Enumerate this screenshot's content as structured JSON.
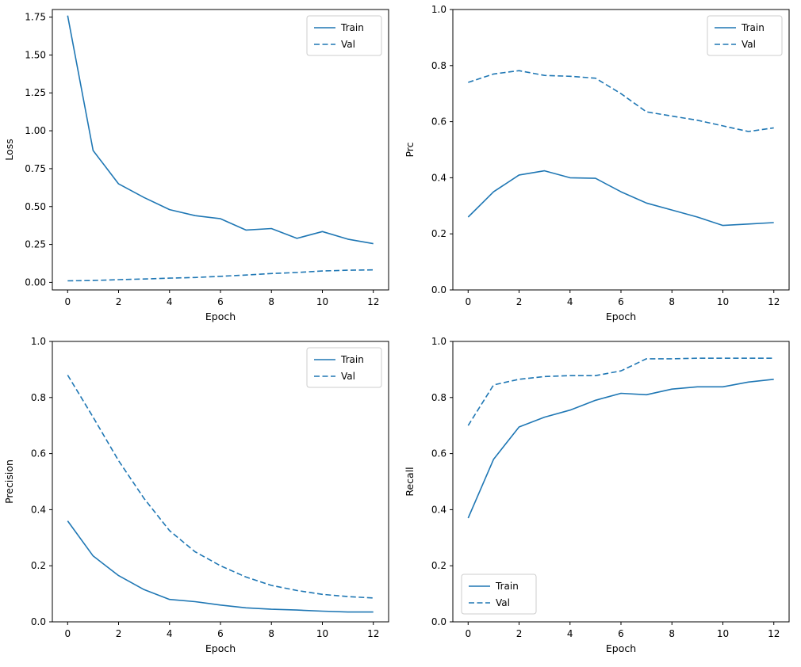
{
  "figure": {
    "background": "#ffffff",
    "line_color": "#1f77b4",
    "frame_color": "#000000",
    "legend_border_color": "#cccccc"
  },
  "chart_data": [
    {
      "type": "line",
      "name": "loss",
      "title": "",
      "xlabel": "Epoch",
      "ylabel": "Loss",
      "x": [
        0,
        1,
        2,
        3,
        4,
        5,
        6,
        7,
        8,
        9,
        10,
        11,
        12
      ],
      "xlim": [
        -0.6,
        12.6
      ],
      "ylim": [
        -0.05,
        1.8
      ],
      "xticks": [
        "0",
        "2",
        "4",
        "6",
        "8",
        "10",
        "12"
      ],
      "yticks": [
        "0.00",
        "0.25",
        "0.50",
        "0.75",
        "1.00",
        "1.25",
        "1.50",
        "1.75"
      ],
      "legend": {
        "position": "upper-right"
      },
      "series": [
        {
          "name": "Train",
          "style": "solid",
          "values": [
            1.76,
            0.87,
            0.65,
            0.56,
            0.48,
            0.44,
            0.42,
            0.345,
            0.355,
            0.29,
            0.335,
            0.285,
            0.255
          ]
        },
        {
          "name": "Val",
          "style": "dashed",
          "values": [
            0.01,
            0.012,
            0.018,
            0.022,
            0.028,
            0.032,
            0.04,
            0.048,
            0.058,
            0.065,
            0.075,
            0.08,
            0.082
          ]
        }
      ]
    },
    {
      "type": "line",
      "name": "prc",
      "title": "",
      "xlabel": "Epoch",
      "ylabel": "Prc",
      "x": [
        0,
        1,
        2,
        3,
        4,
        5,
        6,
        7,
        8,
        9,
        10,
        11,
        12
      ],
      "xlim": [
        -0.6,
        12.6
      ],
      "ylim": [
        0,
        1
      ],
      "xticks": [
        "0",
        "2",
        "4",
        "6",
        "8",
        "10",
        "12"
      ],
      "yticks": [
        "0.0",
        "0.2",
        "0.4",
        "0.6",
        "0.8",
        "1.0"
      ],
      "legend": {
        "position": "upper-right"
      },
      "series": [
        {
          "name": "Train",
          "style": "solid",
          "values": [
            0.26,
            0.35,
            0.41,
            0.425,
            0.4,
            0.398,
            0.35,
            0.31,
            0.285,
            0.26,
            0.23,
            0.235,
            0.24
          ]
        },
        {
          "name": "Val",
          "style": "dashed",
          "values": [
            0.74,
            0.77,
            0.782,
            0.765,
            0.762,
            0.755,
            0.7,
            0.635,
            0.62,
            0.605,
            0.585,
            0.565,
            0.578
          ]
        }
      ]
    },
    {
      "type": "line",
      "name": "precision",
      "title": "",
      "xlabel": "Epoch",
      "ylabel": "Precision",
      "x": [
        0,
        1,
        2,
        3,
        4,
        5,
        6,
        7,
        8,
        9,
        10,
        11,
        12
      ],
      "xlim": [
        -0.6,
        12.6
      ],
      "ylim": [
        0,
        1
      ],
      "xticks": [
        "0",
        "2",
        "4",
        "6",
        "8",
        "10",
        "12"
      ],
      "yticks": [
        "0.0",
        "0.2",
        "0.4",
        "0.6",
        "0.8",
        "1.0"
      ],
      "legend": {
        "position": "upper-right"
      },
      "series": [
        {
          "name": "Train",
          "style": "solid",
          "values": [
            0.36,
            0.235,
            0.165,
            0.115,
            0.08,
            0.072,
            0.06,
            0.05,
            0.045,
            0.042,
            0.038,
            0.035,
            0.035
          ]
        },
        {
          "name": "Val",
          "style": "dashed",
          "values": [
            0.88,
            0.73,
            0.575,
            0.44,
            0.325,
            0.25,
            0.2,
            0.16,
            0.13,
            0.112,
            0.098,
            0.09,
            0.085
          ]
        }
      ]
    },
    {
      "type": "line",
      "name": "recall",
      "title": "",
      "xlabel": "Epoch",
      "ylabel": "Recall",
      "x": [
        0,
        1,
        2,
        3,
        4,
        5,
        6,
        7,
        8,
        9,
        10,
        11,
        12
      ],
      "xlim": [
        -0.6,
        12.6
      ],
      "ylim": [
        0,
        1
      ],
      "xticks": [
        "0",
        "2",
        "4",
        "6",
        "8",
        "10",
        "12"
      ],
      "yticks": [
        "0.0",
        "0.2",
        "0.4",
        "0.6",
        "0.8",
        "1.0"
      ],
      "legend": {
        "position": "lower-left"
      },
      "series": [
        {
          "name": "Train",
          "style": "solid",
          "values": [
            0.37,
            0.58,
            0.695,
            0.73,
            0.755,
            0.79,
            0.815,
            0.81,
            0.83,
            0.838,
            0.838,
            0.855,
            0.865
          ]
        },
        {
          "name": "Val",
          "style": "dashed",
          "values": [
            0.7,
            0.845,
            0.865,
            0.875,
            0.878,
            0.878,
            0.895,
            0.938,
            0.938,
            0.94,
            0.94,
            0.94,
            0.94
          ]
        }
      ]
    }
  ]
}
